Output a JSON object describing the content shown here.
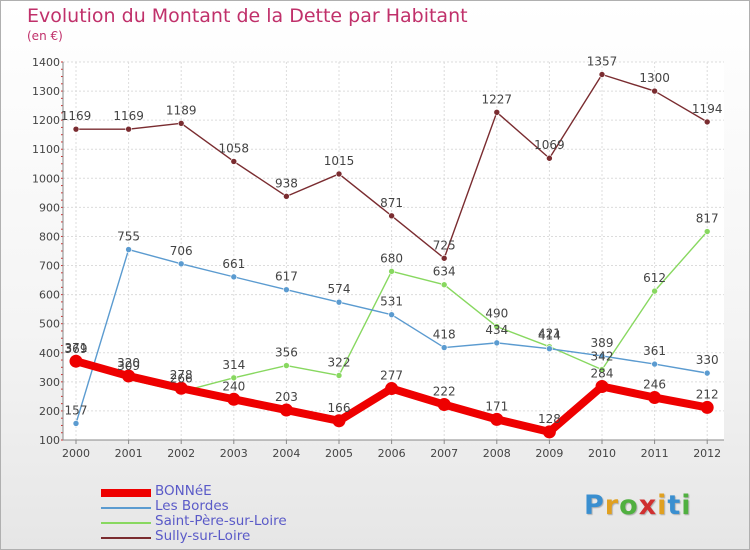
{
  "title": "Evolution du Montant de la Dette par Habitant",
  "unit_label": "(en €)",
  "logo": {
    "text": "Proxiti",
    "letters": [
      {
        "ch": "P",
        "color": "#3a8fd0"
      },
      {
        "ch": "r",
        "color": "#e0a020"
      },
      {
        "ch": "o",
        "color": "#50b040"
      },
      {
        "ch": "x",
        "color": "#d03030"
      },
      {
        "ch": "i",
        "color": "#e0a020"
      },
      {
        "ch": "t",
        "color": "#3a8fd0"
      },
      {
        "ch": "i",
        "color": "#50b040"
      }
    ]
  },
  "chart_data": {
    "type": "line",
    "title": "Evolution du Montant de la Dette par Habitant",
    "subtitle": "(en €)",
    "xlabel": "",
    "ylabel": "",
    "x": [
      "2000",
      "2001",
      "2002",
      "2003",
      "2004",
      "2005",
      "2006",
      "2007",
      "2008",
      "2009",
      "2010",
      "2011",
      "2012"
    ],
    "ylim": [
      100,
      1400
    ],
    "yticks": [
      "100",
      "200",
      "300",
      "400",
      "500",
      "600",
      "700",
      "800",
      "900",
      "1000",
      "1100",
      "1200",
      "1300",
      "1400"
    ],
    "grid": true,
    "legend_position": "bottom-left",
    "series": [
      {
        "name": "BONNéE",
        "color": "#ee0000",
        "width": "thick",
        "values": [
          371,
          320,
          278,
          240,
          203,
          166,
          277,
          222,
          171,
          128,
          284,
          246,
          212
        ],
        "labels": [
          "371",
          "320",
          "278",
          "240",
          "203",
          "166",
          "277",
          "222",
          "171",
          "128",
          "284",
          "246",
          "212"
        ]
      },
      {
        "name": "Les Bordes",
        "color": "#5b9bd0",
        "width": "thin",
        "values": [
          157,
          755,
          706,
          661,
          617,
          574,
          531,
          418,
          434,
          414,
          389,
          361,
          330
        ],
        "labels": [
          "157",
          "755",
          "706",
          "661",
          "617",
          "574",
          "531",
          "418",
          "434",
          "414",
          "389",
          "361",
          "330"
        ]
      },
      {
        "name": "Saint-Père-sur-Loire",
        "color": "#88d860",
        "width": "thin",
        "values": [
          369,
          309,
          266,
          314,
          356,
          322,
          680,
          634,
          490,
          421,
          342,
          612,
          817
        ],
        "labels": [
          "369",
          "309",
          "266",
          "314",
          "356",
          "322",
          "680",
          "634",
          "490",
          "421",
          "342",
          "612",
          "817"
        ]
      },
      {
        "name": "Sully-sur-Loire",
        "color": "#7a2c30",
        "width": "thin",
        "values": [
          1169,
          1169,
          1189,
          1058,
          938,
          1015,
          871,
          725,
          1227,
          1069,
          1357,
          1300,
          1194
        ],
        "labels": [
          "1169",
          "1169",
          "1189",
          "1058",
          "938",
          "1015",
          "871",
          "725",
          "1227",
          "1069",
          "1357",
          "1300",
          "1194"
        ]
      }
    ]
  }
}
